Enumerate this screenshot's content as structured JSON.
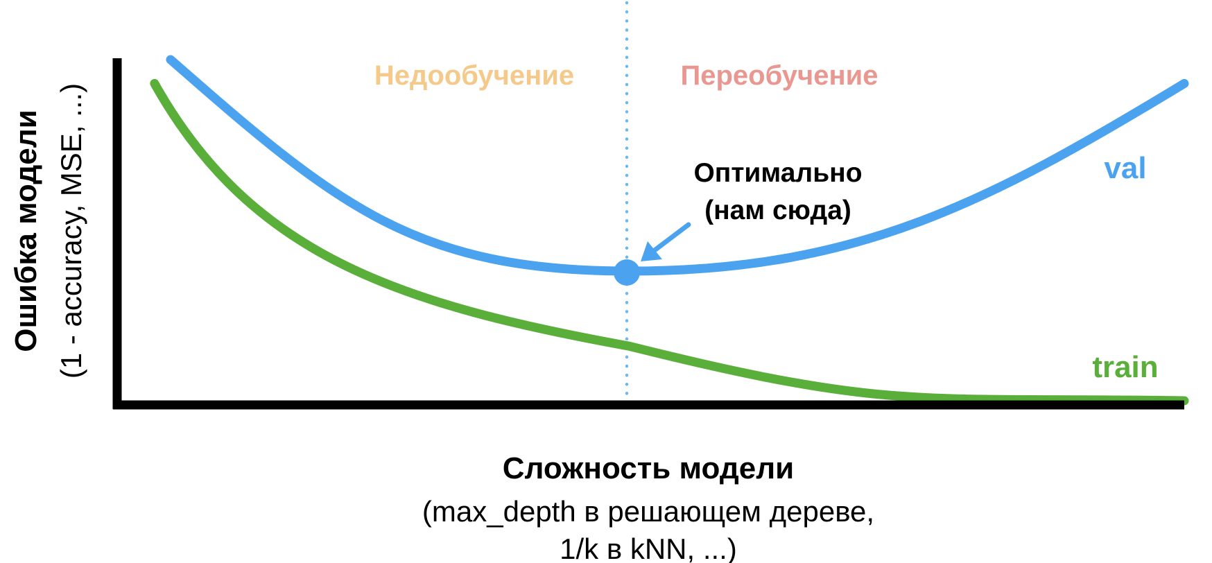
{
  "colors": {
    "val": "#4ba3f0",
    "train": "#5aae3a",
    "underfit": "#f5c98a",
    "overfit": "#e89890",
    "axis": "#000000",
    "divider": "#6fb8ea",
    "text": "#000000"
  },
  "chart_data": {
    "type": "line",
    "title": "",
    "x_scale": "qualitative (no tick values)",
    "y_scale": "qualitative (no tick values)",
    "grid": false,
    "legend": "inline labels at right end of curves",
    "xlabel": {
      "main": "Сложность модели",
      "sub1": "(max_depth в решающем дереве,",
      "sub2": "1/k в kNN, ...)"
    },
    "ylabel": {
      "main": "Ошибка модели",
      "sub": "(1 - accuracy, MSE, ...)"
    },
    "series": [
      {
        "name": "val",
        "shape": "U-shaped curve with minimum at the optimum",
        "points": [
          [
            0.05,
            1.0
          ],
          [
            0.48,
            0.38
          ],
          [
            1.0,
            0.93
          ]
        ]
      },
      {
        "name": "train",
        "shape": "monotonically decreasing curve",
        "points": [
          [
            0.035,
            0.93
          ],
          [
            0.48,
            0.16
          ],
          [
            1.0,
            0.0
          ]
        ]
      }
    ],
    "annotations": {
      "underfit": "Недообучение",
      "overfit": "Переобучение",
      "optimum_line1": "Оптимально",
      "optimum_line2": "(нам сюда)"
    }
  }
}
